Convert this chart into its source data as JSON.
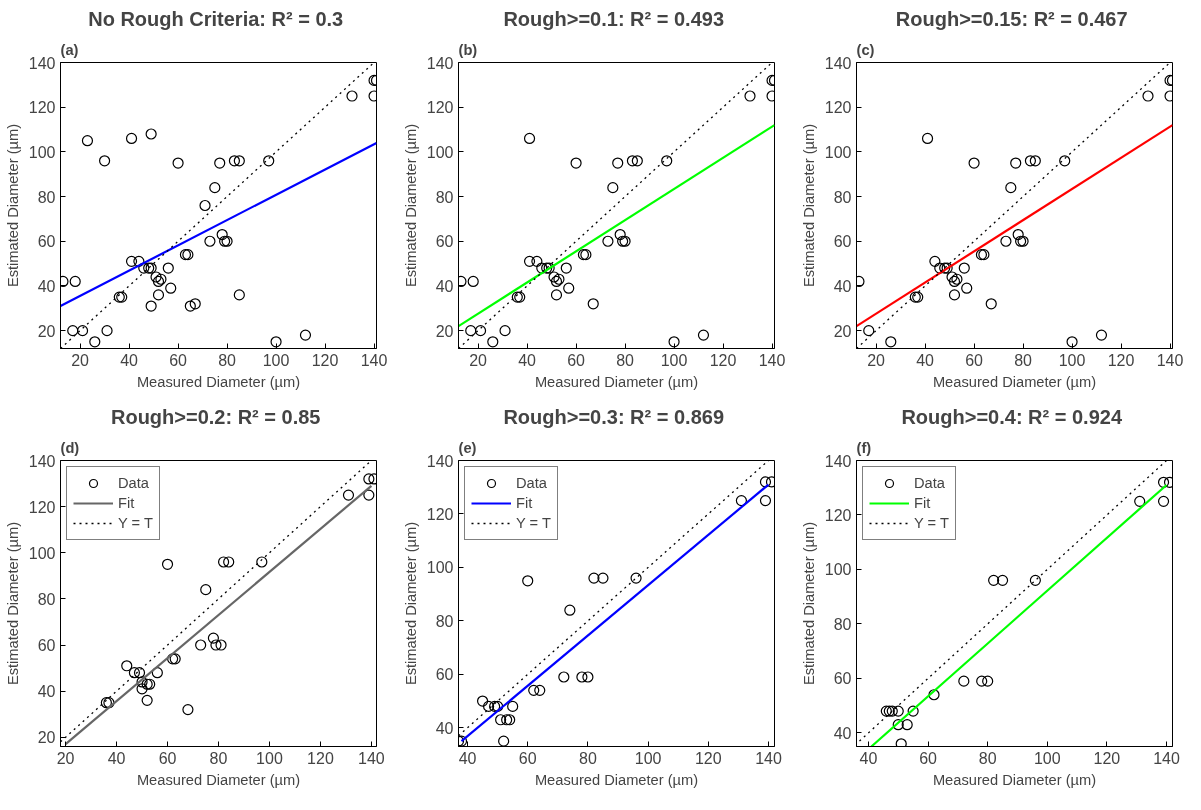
{
  "chart_data": [
    {
      "type": "scatter",
      "title": "No Rough Criteria:  R² = 0.3",
      "annotations": [
        "(a)"
      ],
      "xlabel": "Measured Diameter (µm)",
      "ylabel": "Estimated Diameter (µm)",
      "xlim": [
        12,
        141
      ],
      "ylim": [
        12,
        140
      ],
      "xticks": [
        20,
        40,
        60,
        80,
        100,
        120,
        140
      ],
      "yticks": [
        20,
        40,
        60,
        80,
        100,
        120,
        140
      ],
      "grid": false,
      "series": [
        {
          "marker": "circle",
          "color": "#000000",
          "x": [
            13,
            18,
            17,
            21,
            26,
            31,
            23,
            30,
            41,
            49,
            60,
            77,
            83,
            85,
            97,
            75,
            71,
            78,
            73,
            79,
            80,
            63,
            64,
            41,
            44,
            46,
            48,
            49,
            51,
            53,
            52,
            56,
            57,
            52,
            49,
            65,
            67,
            36,
            37,
            85,
            100,
            112,
            131,
            140,
            140,
            141
          ],
          "values": [
            42,
            42,
            20,
            20,
            15,
            20,
            105,
            96,
            106,
            108,
            95,
            95,
            96,
            96,
            96,
            84,
            76,
            63,
            60,
            60,
            60,
            54,
            54,
            51,
            51,
            48,
            48,
            48,
            44,
            43,
            42,
            48,
            39,
            36,
            31,
            31,
            32,
            35,
            35,
            36,
            15,
            18,
            125,
            125,
            132,
            132
          ]
        },
        {
          "type": "line",
          "marker": "none",
          "color": "#0000ff",
          "line_style": "solid",
          "x": [
            12,
            141
          ],
          "values": [
            31,
            104
          ]
        },
        {
          "type": "line",
          "marker": "none",
          "color": "#000000",
          "line_style": "dotted",
          "x": [
            12,
            140
          ],
          "values": [
            12,
            140
          ]
        }
      ]
    },
    {
      "type": "scatter",
      "title": "Rough>=0.1:  R² = 0.493",
      "annotations": [
        "(b)"
      ],
      "xlabel": "Measured Diameter (µm)",
      "ylabel": "Estimated Diameter (µm)",
      "xlim": [
        12,
        141
      ],
      "ylim": [
        12,
        140
      ],
      "xticks": [
        20,
        40,
        60,
        80,
        100,
        120,
        140
      ],
      "yticks": [
        20,
        40,
        60,
        80,
        100,
        120,
        140
      ],
      "grid": false,
      "series": [
        {
          "marker": "circle",
          "color": "#000000",
          "x": [
            13,
            18,
            17,
            21,
            26,
            31,
            41,
            60,
            77,
            83,
            85,
            97,
            75,
            78,
            73,
            79,
            80,
            63,
            64,
            41,
            44,
            46,
            48,
            49,
            51,
            53,
            52,
            56,
            57,
            52,
            67,
            36,
            37,
            100,
            112,
            131,
            140,
            140,
            141
          ],
          "values": [
            42,
            42,
            20,
            20,
            15,
            20,
            106,
            95,
            95,
            96,
            96,
            96,
            84,
            63,
            60,
            60,
            60,
            54,
            54,
            51,
            51,
            48,
            48,
            48,
            44,
            43,
            42,
            48,
            39,
            36,
            32,
            35,
            35,
            15,
            18,
            125,
            125,
            132,
            132
          ]
        },
        {
          "type": "line",
          "marker": "none",
          "color": "#00ff00",
          "line_style": "solid",
          "x": [
            12,
            141
          ],
          "values": [
            22,
            112
          ]
        },
        {
          "type": "line",
          "marker": "none",
          "color": "#000000",
          "line_style": "dotted",
          "x": [
            12,
            140
          ],
          "values": [
            12,
            140
          ]
        }
      ]
    },
    {
      "type": "scatter",
      "title": "Rough>=0.15:  R² = 0.467",
      "annotations": [
        "(c)"
      ],
      "xlabel": "Measured Diameter (µm)",
      "ylabel": "Estimated Diameter (µm)",
      "xlim": [
        12,
        141
      ],
      "ylim": [
        12,
        140
      ],
      "xticks": [
        20,
        40,
        60,
        80,
        100,
        120,
        140
      ],
      "yticks": [
        20,
        40,
        60,
        80,
        100,
        120,
        140
      ],
      "grid": false,
      "series": [
        {
          "marker": "circle",
          "color": "#000000",
          "x": [
            13,
            17,
            26,
            41,
            60,
            77,
            83,
            85,
            97,
            75,
            78,
            73,
            79,
            80,
            63,
            64,
            44,
            46,
            48,
            49,
            51,
            53,
            52,
            56,
            57,
            52,
            67,
            36,
            37,
            100,
            112,
            131,
            140,
            140,
            141
          ],
          "values": [
            42,
            20,
            15,
            106,
            95,
            95,
            96,
            96,
            96,
            84,
            63,
            60,
            60,
            60,
            54,
            54,
            51,
            48,
            48,
            48,
            44,
            43,
            42,
            48,
            39,
            36,
            32,
            35,
            35,
            15,
            18,
            125,
            125,
            132,
            132
          ]
        },
        {
          "type": "line",
          "marker": "none",
          "color": "#ff0000",
          "line_style": "solid",
          "x": [
            12,
            141
          ],
          "values": [
            22,
            112
          ]
        },
        {
          "type": "line",
          "marker": "none",
          "color": "#000000",
          "line_style": "dotted",
          "x": [
            12,
            140
          ],
          "values": [
            12,
            140
          ]
        }
      ]
    },
    {
      "type": "scatter",
      "title": "Rough>=0.2:  R² = 0.85",
      "annotations": [
        "(d)"
      ],
      "xlabel": "Measured Diameter (µm)",
      "ylabel": "Estimated Diameter (µm)",
      "xlim": [
        18,
        142
      ],
      "ylim": [
        16,
        140
      ],
      "xticks": [
        20,
        40,
        60,
        80,
        100,
        120,
        140
      ],
      "yticks": [
        20,
        40,
        60,
        80,
        100,
        120,
        140
      ],
      "grid": false,
      "legend": "top left",
      "series": [
        {
          "marker": "circle",
          "name": "Data",
          "color": "#000000",
          "x": [
            60,
            82,
            84,
            97,
            75,
            78,
            73,
            79,
            81,
            62,
            63,
            44,
            47,
            49,
            50,
            50,
            52,
            53,
            56,
            52,
            68,
            36,
            37,
            131,
            139,
            139,
            141
          ],
          "values": [
            95,
            96,
            96,
            96,
            84,
            63,
            60,
            60,
            60,
            54,
            54,
            51,
            48,
            48,
            44,
            41,
            43,
            43,
            48,
            36,
            32,
            35,
            35,
            125,
            125,
            132,
            132
          ]
        },
        {
          "type": "line",
          "marker": "none",
          "name": "Fit",
          "color": "#666666",
          "line_style": "solid",
          "x": [
            20,
            140
          ],
          "values": [
            17,
            129
          ]
        },
        {
          "type": "line",
          "marker": "none",
          "name": "Y = T",
          "color": "#000000",
          "line_style": "dotted",
          "x": [
            18,
            140
          ],
          "values": [
            18,
            140
          ]
        }
      ]
    },
    {
      "type": "scatter",
      "title": "Rough>=0.3:  R² = 0.869",
      "annotations": [
        "(e)"
      ],
      "xlabel": "Measured Diameter (µm)",
      "ylabel": "Estimated Diameter (µm)",
      "xlim": [
        37,
        142
      ],
      "ylim": [
        33,
        140
      ],
      "xticks": [
        40,
        60,
        80,
        100,
        120,
        140
      ],
      "yticks": [
        40,
        60,
        80,
        100,
        120,
        140
      ],
      "grid": false,
      "legend": "top left",
      "series": [
        {
          "marker": "circle",
          "name": "Data",
          "color": "#000000",
          "x": [
            60,
            82,
            85,
            96,
            74,
            72,
            78,
            80,
            62,
            64,
            45,
            47,
            49,
            50,
            55,
            51,
            53,
            54,
            52,
            37,
            38,
            131,
            139,
            139,
            141
          ],
          "values": [
            95,
            96,
            96,
            96,
            84,
            59,
            59,
            59,
            54,
            54,
            50,
            48,
            48,
            48,
            48,
            43,
            43,
            43,
            35,
            35,
            35,
            125,
            125,
            132,
            132
          ]
        },
        {
          "type": "line",
          "marker": "none",
          "name": "Fit",
          "color": "#0000ff",
          "line_style": "solid",
          "x": [
            38,
            140
          ],
          "values": [
            35,
            131
          ]
        },
        {
          "type": "line",
          "marker": "none",
          "name": "Y = T",
          "color": "#000000",
          "line_style": "dotted",
          "x": [
            37,
            140
          ],
          "values": [
            37,
            140
          ]
        }
      ]
    },
    {
      "type": "scatter",
      "title": "Rough>=0.4:  R² = 0.924",
      "annotations": [
        "(f)"
      ],
      "xlabel": "Measured Diameter (µm)",
      "ylabel": "Estimated Diameter (µm)",
      "xlim": [
        36,
        142
      ],
      "ylim": [
        35,
        140
      ],
      "xticks": [
        40,
        60,
        80,
        100,
        120,
        140
      ],
      "yticks": [
        40,
        60,
        80,
        100,
        120,
        140
      ],
      "grid": false,
      "legend": "top left",
      "series": [
        {
          "marker": "circle",
          "name": "Data",
          "color": "#000000",
          "x": [
            82,
            85,
            96,
            72,
            78,
            80,
            62,
            46,
            47,
            48,
            50,
            55,
            50,
            53,
            51,
            131,
            139,
            139,
            141
          ],
          "values": [
            96,
            96,
            96,
            59,
            59,
            59,
            54,
            48,
            48,
            48,
            48,
            48,
            43,
            43,
            36,
            125,
            125,
            132,
            132
          ]
        },
        {
          "type": "line",
          "marker": "none",
          "name": "Fit",
          "color": "#00ff00",
          "line_style": "solid",
          "x": [
            41,
            140
          ],
          "values": [
            35,
            131
          ]
        },
        {
          "type": "line",
          "marker": "none",
          "name": "Y = T",
          "color": "#000000",
          "line_style": "dotted",
          "x": [
            37,
            140
          ],
          "values": [
            37,
            140
          ]
        }
      ]
    }
  ]
}
